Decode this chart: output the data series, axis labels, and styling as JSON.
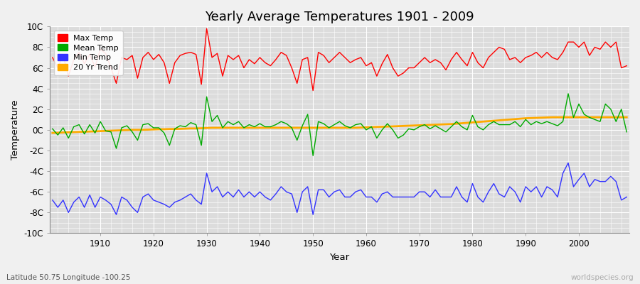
{
  "title": "Yearly Average Temperatures 1901 - 2009",
  "xlabel": "Year",
  "ylabel": "Temperature",
  "bottom_left": "Latitude 50.75 Longitude -100.25",
  "bottom_right": "worldspecies.org",
  "ylim": [
    -10,
    10
  ],
  "yticks": [
    -10,
    -8,
    -6,
    -4,
    -2,
    0,
    2,
    4,
    6,
    8,
    10
  ],
  "ytick_labels": [
    "-10C",
    "-8C",
    "-6C",
    "-4C",
    "-2C",
    "0C",
    "2C",
    "4C",
    "6C",
    "8C",
    "10C"
  ],
  "years": [
    1901,
    1902,
    1903,
    1904,
    1905,
    1906,
    1907,
    1908,
    1909,
    1910,
    1911,
    1912,
    1913,
    1914,
    1915,
    1916,
    1917,
    1918,
    1919,
    1920,
    1921,
    1922,
    1923,
    1924,
    1925,
    1926,
    1927,
    1928,
    1929,
    1930,
    1931,
    1932,
    1933,
    1934,
    1935,
    1936,
    1937,
    1938,
    1939,
    1940,
    1941,
    1942,
    1943,
    1944,
    1945,
    1946,
    1947,
    1948,
    1949,
    1950,
    1951,
    1952,
    1953,
    1954,
    1955,
    1956,
    1957,
    1958,
    1959,
    1960,
    1961,
    1962,
    1963,
    1964,
    1965,
    1966,
    1967,
    1968,
    1969,
    1970,
    1971,
    1972,
    1973,
    1974,
    1975,
    1976,
    1977,
    1978,
    1979,
    1980,
    1981,
    1982,
    1983,
    1984,
    1985,
    1986,
    1987,
    1988,
    1989,
    1990,
    1991,
    1992,
    1993,
    1994,
    1995,
    1996,
    1997,
    1998,
    1999,
    2000,
    2001,
    2002,
    2003,
    2004,
    2005,
    2006,
    2007,
    2008,
    2009
  ],
  "max_temp": [
    7.0,
    6.0,
    7.2,
    5.2,
    6.8,
    7.5,
    6.4,
    7.3,
    6.1,
    7.8,
    7.4,
    6.0,
    4.5,
    7.0,
    6.8,
    7.2,
    5.0,
    7.0,
    7.5,
    6.8,
    7.3,
    6.5,
    4.5,
    6.5,
    7.2,
    7.4,
    7.5,
    7.3,
    4.4,
    9.8,
    7.0,
    7.4,
    5.2,
    7.2,
    6.8,
    7.2,
    6.0,
    6.8,
    6.4,
    7.0,
    6.5,
    6.2,
    6.8,
    7.5,
    7.2,
    6.0,
    4.5,
    6.8,
    7.0,
    3.8,
    7.5,
    7.2,
    6.5,
    7.0,
    7.5,
    7.0,
    6.5,
    6.8,
    7.0,
    6.2,
    6.5,
    5.2,
    6.4,
    7.3,
    6.0,
    5.2,
    5.5,
    6.0,
    6.0,
    6.5,
    7.0,
    6.5,
    6.8,
    6.5,
    5.8,
    6.8,
    7.5,
    6.8,
    6.2,
    7.5,
    6.5,
    6.0,
    7.0,
    7.5,
    8.0,
    7.8,
    6.8,
    7.0,
    6.5,
    7.0,
    7.2,
    7.5,
    7.0,
    7.5,
    7.0,
    6.8,
    7.5,
    8.5,
    8.5,
    8.0,
    8.5,
    7.2,
    8.0,
    7.8,
    8.5,
    8.0,
    8.5,
    6.0,
    6.2
  ],
  "mean_temp": [
    0.1,
    -0.5,
    0.2,
    -0.8,
    0.3,
    0.5,
    -0.4,
    0.5,
    -0.3,
    0.8,
    -0.1,
    -0.2,
    -1.8,
    0.2,
    0.4,
    -0.2,
    -1.0,
    0.5,
    0.6,
    0.2,
    0.2,
    -0.3,
    -1.5,
    0.1,
    0.4,
    0.3,
    0.7,
    0.5,
    -1.5,
    3.2,
    0.8,
    1.4,
    0.2,
    0.8,
    0.5,
    0.8,
    0.2,
    0.5,
    0.3,
    0.6,
    0.3,
    0.3,
    0.5,
    0.8,
    0.6,
    0.2,
    -1.0,
    0.4,
    1.5,
    -2.5,
    0.8,
    0.6,
    0.2,
    0.5,
    0.8,
    0.4,
    0.2,
    0.5,
    0.6,
    0.0,
    0.3,
    -0.8,
    0.0,
    0.6,
    0.0,
    -0.8,
    -0.5,
    0.1,
    0.0,
    0.3,
    0.5,
    0.1,
    0.4,
    0.1,
    -0.2,
    0.3,
    0.8,
    0.3,
    0.0,
    1.4,
    0.3,
    0.0,
    0.5,
    0.8,
    0.5,
    0.5,
    0.5,
    0.8,
    0.3,
    1.0,
    0.5,
    0.8,
    0.6,
    0.8,
    0.6,
    0.4,
    0.8,
    3.5,
    1.2,
    2.5,
    1.5,
    1.2,
    1.0,
    0.8,
    2.5,
    2.0,
    0.8,
    2.0,
    -0.2
  ],
  "min_temp": [
    -6.8,
    -7.5,
    -6.8,
    -8.0,
    -7.0,
    -6.5,
    -7.5,
    -6.3,
    -7.5,
    -6.5,
    -6.8,
    -7.2,
    -8.2,
    -6.5,
    -6.8,
    -7.5,
    -8.0,
    -6.5,
    -6.2,
    -6.8,
    -7.0,
    -7.2,
    -7.5,
    -7.0,
    -6.8,
    -6.5,
    -6.2,
    -6.8,
    -7.2,
    -4.2,
    -6.0,
    -5.5,
    -6.5,
    -6.0,
    -6.5,
    -5.8,
    -6.5,
    -6.0,
    -6.5,
    -6.0,
    -6.5,
    -6.8,
    -6.2,
    -5.5,
    -6.0,
    -6.2,
    -8.0,
    -6.0,
    -5.5,
    -8.2,
    -5.8,
    -5.8,
    -6.5,
    -6.0,
    -5.8,
    -6.5,
    -6.5,
    -6.0,
    -5.8,
    -6.5,
    -6.5,
    -7.0,
    -6.2,
    -6.0,
    -6.5,
    -6.5,
    -6.5,
    -6.5,
    -6.5,
    -6.0,
    -6.0,
    -6.5,
    -5.8,
    -6.5,
    -6.5,
    -6.5,
    -5.5,
    -6.5,
    -7.0,
    -5.2,
    -6.5,
    -7.0,
    -6.0,
    -5.2,
    -6.2,
    -6.5,
    -5.5,
    -6.0,
    -7.0,
    -5.5,
    -6.0,
    -5.5,
    -6.5,
    -5.5,
    -5.8,
    -6.5,
    -4.2,
    -3.2,
    -5.5,
    -4.8,
    -4.2,
    -5.5,
    -4.8,
    -5.0,
    -5.0,
    -4.5,
    -5.0,
    -6.8,
    -6.5
  ],
  "trend_20yr": [
    -0.3,
    -0.28,
    -0.26,
    -0.24,
    -0.22,
    -0.2,
    -0.18,
    -0.16,
    -0.14,
    -0.12,
    -0.1,
    -0.08,
    -0.06,
    -0.04,
    -0.02,
    0.0,
    0.0,
    0.0,
    0.02,
    0.04,
    0.06,
    0.06,
    0.08,
    0.08,
    0.1,
    0.12,
    0.14,
    0.14,
    0.16,
    0.18,
    0.2,
    0.2,
    0.2,
    0.2,
    0.2,
    0.2,
    0.2,
    0.2,
    0.2,
    0.2,
    0.2,
    0.2,
    0.2,
    0.2,
    0.2,
    0.2,
    0.2,
    0.2,
    0.2,
    0.2,
    0.2,
    0.2,
    0.2,
    0.2,
    0.2,
    0.2,
    0.2,
    0.2,
    0.22,
    0.24,
    0.26,
    0.28,
    0.3,
    0.32,
    0.34,
    0.36,
    0.38,
    0.4,
    0.42,
    0.44,
    0.46,
    0.48,
    0.5,
    0.52,
    0.54,
    0.56,
    0.6,
    0.64,
    0.68,
    0.72,
    0.76,
    0.8,
    0.84,
    0.88,
    0.92,
    0.96,
    1.0,
    1.04,
    1.08,
    1.12,
    1.14,
    1.16,
    1.18,
    1.2,
    1.22,
    1.22,
    1.22,
    1.22,
    1.22,
    1.22,
    1.22,
    1.22,
    1.22,
    1.22,
    1.22,
    1.22,
    1.22,
    1.22,
    1.22
  ],
  "colors": {
    "max": "#ff0000",
    "mean": "#00aa00",
    "min": "#3333ff",
    "trend": "#ffaa00",
    "fig_bg": "#f0f0f0",
    "plot_bg": "#dcdcdc"
  },
  "legend_labels": [
    "Max Temp",
    "Mean Temp",
    "Min Temp",
    "20 Yr Trend"
  ],
  "xticks": [
    1910,
    1920,
    1930,
    1940,
    1950,
    1960,
    1970,
    1980,
    1990,
    2000
  ],
  "figsize": [
    9.0,
    4.0
  ],
  "dpi": 100
}
